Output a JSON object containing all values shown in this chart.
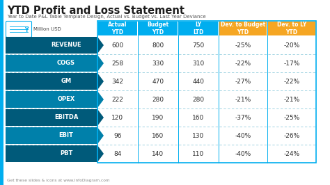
{
  "title": "YTD Profit and Loss Statement",
  "subtitle": "Year to Date P&L Table Template Design, Actual vs. Budget vs. Last Year Deviance",
  "unit_label": "Million USD",
  "col_headers": [
    "Actual\nYTD",
    "Budget\nYTD",
    "LY\nLTD",
    "Dev. to Budget\nYTD",
    "Dev. to LY\nYTD"
  ],
  "col_header_colors": [
    "#00AEEF",
    "#00AEEF",
    "#00AEEF",
    "#F5A623",
    "#F5A623"
  ],
  "rows": [
    {
      "label": "REVENUE",
      "values": [
        "600",
        "800",
        "750",
        "-25%",
        "-20%"
      ]
    },
    {
      "label": "COGS",
      "values": [
        "258",
        "330",
        "310",
        "-22%",
        "-17%"
      ]
    },
    {
      "label": "GM",
      "values": [
        "342",
        "470",
        "440",
        "-27%",
        "-22%"
      ]
    },
    {
      "label": "OPEX",
      "values": [
        "222",
        "280",
        "280",
        "-21%",
        "-21%"
      ]
    },
    {
      "label": "EBITDA",
      "values": [
        "120",
        "190",
        "160",
        "-37%",
        "-25%"
      ]
    },
    {
      "label": "EBIT",
      "values": [
        "96",
        "160",
        "130",
        "-40%",
        "-26%"
      ]
    },
    {
      "label": "PBT",
      "values": [
        "84",
        "140",
        "110",
        "-40%",
        "-24%"
      ]
    }
  ],
  "row_colors_dark": "#005A7A",
  "row_colors_mid": "#0080AA",
  "row_colors": [
    "#005A7A",
    "#0080AA",
    "#005A7A",
    "#0080AA",
    "#005A7A",
    "#0080AA",
    "#005A7A"
  ],
  "bg_color": "#FFFFFF",
  "border_color": "#00AEEF",
  "footer": "Get these slides & icons at www.InfoDiagram.com",
  "title_fontsize": 10.5,
  "subtitle_fontsize": 5.0,
  "header_fontsize": 5.5,
  "cell_fontsize": 6.5,
  "label_fontsize": 6.0
}
